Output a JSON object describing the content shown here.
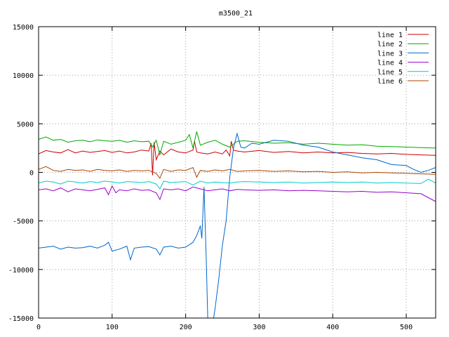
{
  "chart_data": {
    "type": "line",
    "title": "m3500_21",
    "xlabel": "",
    "ylabel": "",
    "xlim": [
      0,
      540
    ],
    "ylim": [
      -15000,
      15000
    ],
    "x_ticks": [
      0,
      100,
      200,
      300,
      400,
      500
    ],
    "y_ticks": [
      -15000,
      -10000,
      -5000,
      0,
      5000,
      10000,
      15000
    ],
    "grid": true,
    "legend_position": "top-right",
    "series": [
      {
        "name": "line 1",
        "color": "#cc0000",
        "x": [
          0,
          10,
          20,
          30,
          40,
          50,
          60,
          70,
          80,
          90,
          100,
          110,
          120,
          130,
          140,
          150,
          153,
          155,
          157,
          160,
          165,
          170,
          180,
          190,
          200,
          210,
          212,
          215,
          220,
          230,
          240,
          250,
          255,
          260,
          262,
          265,
          270,
          280,
          300,
          320,
          340,
          360,
          380,
          400,
          420,
          440,
          460,
          480,
          500,
          520,
          540
        ],
        "y": [
          1900,
          2250,
          2100,
          2000,
          2350,
          2000,
          2200,
          2050,
          2150,
          2250,
          2050,
          2200,
          2000,
          2100,
          2300,
          2200,
          3000,
          -300,
          3100,
          1300,
          2200,
          1800,
          2400,
          2100,
          2000,
          2300,
          3200,
          2100,
          2000,
          1900,
          2100,
          1900,
          2300,
          1700,
          3200,
          2300,
          2200,
          2100,
          2250,
          2050,
          2150,
          2000,
          2100,
          2000,
          2050,
          1950,
          1900,
          1950,
          1850,
          1800,
          1750
        ]
      },
      {
        "name": "line 2",
        "color": "#00aa00",
        "x": [
          0,
          10,
          20,
          30,
          40,
          50,
          60,
          70,
          80,
          90,
          100,
          110,
          120,
          130,
          140,
          150,
          155,
          160,
          165,
          170,
          180,
          190,
          200,
          205,
          210,
          215,
          220,
          230,
          240,
          250,
          260,
          270,
          280,
          300,
          320,
          340,
          360,
          380,
          400,
          420,
          440,
          460,
          480,
          500,
          520,
          540
        ],
        "y": [
          3400,
          3650,
          3300,
          3400,
          3100,
          3250,
          3300,
          3150,
          3350,
          3250,
          3200,
          3300,
          3100,
          3250,
          3150,
          3200,
          2600,
          3300,
          1800,
          3200,
          2900,
          3100,
          3300,
          3900,
          2500,
          4200,
          2800,
          3100,
          3300,
          2900,
          2600,
          3200,
          3250,
          3100,
          3000,
          3050,
          2900,
          3000,
          2900,
          2800,
          2850,
          2700,
          2650,
          2600,
          2550,
          2500
        ]
      },
      {
        "name": "line 3",
        "color": "#0066cc",
        "x": [
          0,
          10,
          20,
          30,
          40,
          50,
          60,
          70,
          80,
          90,
          95,
          100,
          110,
          120,
          125,
          130,
          140,
          150,
          160,
          165,
          170,
          180,
          190,
          200,
          210,
          215,
          220,
          222,
          225,
          228,
          230,
          235,
          238,
          240,
          245,
          250,
          255,
          260,
          265,
          270,
          275,
          280,
          290,
          300,
          320,
          340,
          360,
          380,
          400,
          420,
          440,
          460,
          480,
          500,
          510,
          520,
          530,
          540
        ],
        "y": [
          -7800,
          -7700,
          -7600,
          -7900,
          -7700,
          -7800,
          -7750,
          -7600,
          -7800,
          -7500,
          -7200,
          -8100,
          -7900,
          -7600,
          -9000,
          -7800,
          -7700,
          -7650,
          -7900,
          -8500,
          -7700,
          -7600,
          -7800,
          -7700,
          -7200,
          -6500,
          -5500,
          -6800,
          -1500,
          -9000,
          -15000,
          -15000,
          -15000,
          -14000,
          -11000,
          -7500,
          -5000,
          -500,
          2500,
          4000,
          2600,
          2500,
          3000,
          2900,
          3300,
          3200,
          2800,
          2600,
          2100,
          1800,
          1500,
          1300,
          800,
          700,
          300,
          0,
          200,
          500
        ]
      },
      {
        "name": "line 4",
        "color": "#9900cc",
        "x": [
          0,
          10,
          20,
          30,
          40,
          50,
          60,
          70,
          80,
          90,
          95,
          100,
          105,
          110,
          120,
          130,
          140,
          150,
          160,
          165,
          170,
          180,
          190,
          200,
          210,
          220,
          230,
          240,
          250,
          260,
          270,
          280,
          300,
          320,
          340,
          360,
          380,
          400,
          420,
          440,
          460,
          480,
          500,
          520,
          530,
          540
        ],
        "y": [
          -1800,
          -1700,
          -1900,
          -1600,
          -2000,
          -1700,
          -1800,
          -1900,
          -1750,
          -1600,
          -2300,
          -1400,
          -2100,
          -1800,
          -1900,
          -1700,
          -1850,
          -1800,
          -2100,
          -2800,
          -1700,
          -1800,
          -1700,
          -1900,
          -1500,
          -1700,
          -1900,
          -1800,
          -1700,
          -1900,
          -1750,
          -1800,
          -1850,
          -1800,
          -1900,
          -1850,
          -1900,
          -1950,
          -2000,
          -1950,
          -2050,
          -2000,
          -2100,
          -2200,
          -2600,
          -3000
        ]
      },
      {
        "name": "line 5",
        "color": "#00cccc",
        "x": [
          0,
          10,
          20,
          30,
          40,
          50,
          60,
          70,
          80,
          90,
          100,
          110,
          120,
          130,
          140,
          150,
          160,
          165,
          170,
          180,
          190,
          200,
          210,
          220,
          230,
          240,
          250,
          260,
          270,
          280,
          300,
          320,
          340,
          360,
          380,
          400,
          420,
          440,
          460,
          480,
          500,
          520,
          530,
          540
        ],
        "y": [
          -1100,
          -900,
          -1000,
          -1200,
          -900,
          -1000,
          -1100,
          -950,
          -1050,
          -900,
          -1000,
          -1100,
          -950,
          -1000,
          -1050,
          -950,
          -1200,
          -1700,
          -900,
          -1050,
          -1000,
          -950,
          -1300,
          -900,
          -1100,
          -1000,
          -1050,
          -1100,
          -1000,
          -950,
          -1000,
          -1050,
          -1000,
          -1100,
          -1050,
          -1000,
          -1050,
          -1000,
          -1100,
          -1050,
          -1100,
          -1150,
          -700,
          -1100
        ]
      },
      {
        "name": "line 6",
        "color": "#aa4400",
        "x": [
          0,
          10,
          20,
          30,
          40,
          50,
          60,
          70,
          80,
          90,
          100,
          110,
          120,
          130,
          140,
          150,
          160,
          165,
          170,
          180,
          190,
          200,
          210,
          215,
          220,
          230,
          240,
          250,
          260,
          270,
          280,
          300,
          320,
          340,
          360,
          380,
          400,
          420,
          440,
          460,
          480,
          500,
          520,
          540
        ],
        "y": [
          300,
          600,
          200,
          100,
          300,
          200,
          250,
          100,
          300,
          200,
          150,
          250,
          100,
          200,
          150,
          200,
          -100,
          -600,
          300,
          100,
          250,
          200,
          500,
          -500,
          200,
          100,
          250,
          150,
          300,
          100,
          150,
          200,
          100,
          150,
          50,
          100,
          0,
          50,
          -50,
          0,
          -50,
          -100,
          -150,
          -200
        ]
      }
    ]
  }
}
